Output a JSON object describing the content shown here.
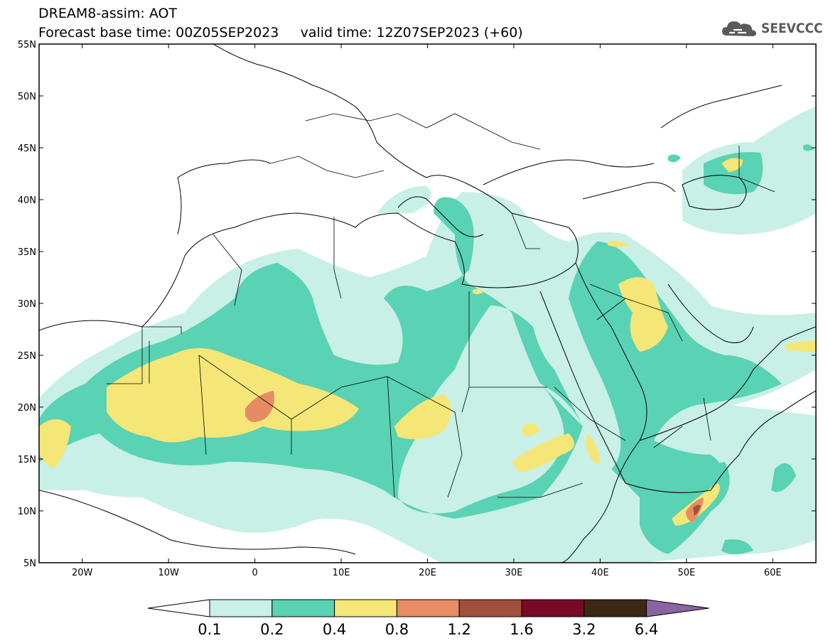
{
  "title": {
    "line1": "DREAM8-assim: AOT",
    "line2": "Forecast base time: 00Z05SEP2023     valid time: 12Z07SEP2023 (+60)"
  },
  "logo": {
    "text": "SEEVCCC",
    "icon": "cloud-icon"
  },
  "map": {
    "lat_range": [
      5,
      55
    ],
    "lon_range": [
      -25,
      65
    ],
    "lat_ticks": [
      "5N",
      "10N",
      "15N",
      "20N",
      "25N",
      "30N",
      "35N",
      "40N",
      "45N",
      "50N",
      "55N"
    ],
    "lon_ticks": [
      "20W",
      "10W",
      "0",
      "10E",
      "20E",
      "30E",
      "40E",
      "50E",
      "60E"
    ],
    "field": "Aerosol Optical Thickness"
  },
  "colorbar": {
    "labels": [
      "0.1",
      "0.2",
      "0.4",
      "0.8",
      "1.2",
      "1.6",
      "3.2",
      "6.4"
    ],
    "colors": [
      "#ffffff",
      "#c8f0e6",
      "#5ad2b4",
      "#f5e678",
      "#e68c64",
      "#a0503c",
      "#780a28",
      "#3c2814",
      "#8c64a0"
    ]
  }
}
